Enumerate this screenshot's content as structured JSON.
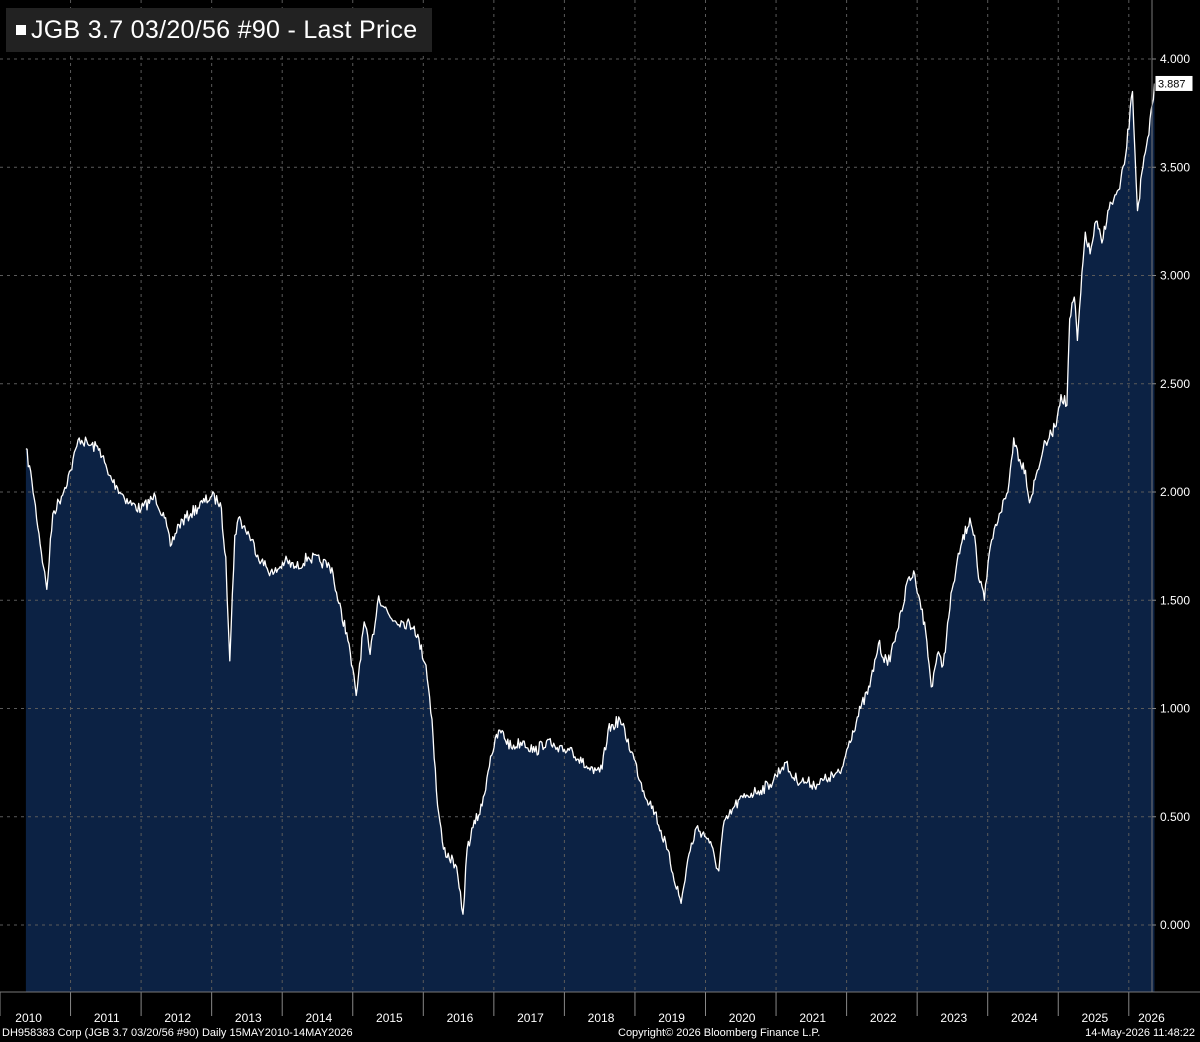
{
  "legend": {
    "label": "JGB 3.7 03/20/56 #90 - Last Price"
  },
  "footer": {
    "left": "DH958383 Corp (JGB 3.7 03/20/56 #90) Daily 15MAY2010-14MAY2026",
    "center": "Copyright© 2026 Bloomberg Finance L.P.",
    "right": "14-May-2026 11:48:22"
  },
  "chart_data": {
    "type": "area",
    "title": "JGB 3.7 03/20/56 #90 - Last Price",
    "xlabel": "",
    "ylabel": "",
    "x_range": [
      "2010-05-15",
      "2026-05-14"
    ],
    "ylim": [
      -0.3,
      4.1
    ],
    "y_ticks": [
      "0.000",
      "0.500",
      "1.000",
      "1.500",
      "2.000",
      "2.500",
      "3.000",
      "3.500",
      "4.000"
    ],
    "x_ticks": [
      "2010",
      "2011",
      "2012",
      "2013",
      "2014",
      "2015",
      "2016",
      "2017",
      "2018",
      "2019",
      "2020",
      "2021",
      "2022",
      "2023",
      "2024",
      "2025",
      "2026"
    ],
    "grid": true,
    "y_axis_side": "right",
    "last_value_label": "3.887",
    "colors": {
      "line": "#ffffff",
      "fill": "#0c2244",
      "background": "#000000",
      "grid": "#5a5a5a"
    },
    "series": [
      {
        "name": "JGB 3.7 03/20/56 #90 - Last Price",
        "points": [
          [
            "2010-05-15",
            2.2
          ],
          [
            "2010-06-15",
            2.05
          ],
          [
            "2010-08-15",
            1.65
          ],
          [
            "2010-08-31",
            1.55
          ],
          [
            "2010-10-01",
            1.9
          ],
          [
            "2010-11-15",
            1.98
          ],
          [
            "2011-01-01",
            2.1
          ],
          [
            "2011-02-15",
            2.25
          ],
          [
            "2011-04-01",
            2.22
          ],
          [
            "2011-06-01",
            2.2
          ],
          [
            "2011-07-15",
            2.08
          ],
          [
            "2011-09-01",
            2.02
          ],
          [
            "2011-11-01",
            1.95
          ],
          [
            "2012-01-01",
            1.92
          ],
          [
            "2012-03-15",
            1.98
          ],
          [
            "2012-05-01",
            1.88
          ],
          [
            "2012-06-01",
            1.75
          ],
          [
            "2012-07-15",
            1.85
          ],
          [
            "2012-09-15",
            1.9
          ],
          [
            "2012-11-15",
            1.95
          ],
          [
            "2013-01-01",
            1.98
          ],
          [
            "2013-02-15",
            1.95
          ],
          [
            "2013-03-15",
            1.7
          ],
          [
            "2013-04-05",
            1.22
          ],
          [
            "2013-05-01",
            1.8
          ],
          [
            "2013-05-20",
            1.88
          ],
          [
            "2013-07-15",
            1.8
          ],
          [
            "2013-09-15",
            1.68
          ],
          [
            "2013-11-15",
            1.62
          ],
          [
            "2014-01-15",
            1.68
          ],
          [
            "2014-03-15",
            1.65
          ],
          [
            "2014-05-15",
            1.7
          ],
          [
            "2014-07-15",
            1.68
          ],
          [
            "2014-09-15",
            1.65
          ],
          [
            "2014-10-15",
            1.5
          ],
          [
            "2014-12-01",
            1.35
          ],
          [
            "2015-01-19",
            1.06
          ],
          [
            "2015-03-01",
            1.4
          ],
          [
            "2015-04-01",
            1.25
          ],
          [
            "2015-05-15",
            1.52
          ],
          [
            "2015-07-15",
            1.42
          ],
          [
            "2015-09-15",
            1.4
          ],
          [
            "2015-11-15",
            1.38
          ],
          [
            "2016-01-15",
            1.2
          ],
          [
            "2016-02-15",
            0.95
          ],
          [
            "2016-03-15",
            0.55
          ],
          [
            "2016-04-15",
            0.35
          ],
          [
            "2016-06-15",
            0.28
          ],
          [
            "2016-07-25",
            0.05
          ],
          [
            "2016-08-15",
            0.35
          ],
          [
            "2016-09-15",
            0.45
          ],
          [
            "2016-11-01",
            0.55
          ],
          [
            "2016-12-15",
            0.78
          ],
          [
            "2017-02-01",
            0.9
          ],
          [
            "2017-04-01",
            0.82
          ],
          [
            "2017-06-01",
            0.85
          ],
          [
            "2017-08-01",
            0.8
          ],
          [
            "2017-10-01",
            0.85
          ],
          [
            "2017-12-01",
            0.8
          ],
          [
            "2018-02-01",
            0.82
          ],
          [
            "2018-04-01",
            0.75
          ],
          [
            "2018-06-01",
            0.7
          ],
          [
            "2018-07-15",
            0.72
          ],
          [
            "2018-08-15",
            0.9
          ],
          [
            "2018-10-15",
            0.95
          ],
          [
            "2018-12-15",
            0.8
          ],
          [
            "2019-02-15",
            0.62
          ],
          [
            "2019-04-15",
            0.52
          ],
          [
            "2019-06-15",
            0.35
          ],
          [
            "2019-08-28",
            0.1
          ],
          [
            "2019-10-01",
            0.3
          ],
          [
            "2019-11-15",
            0.45
          ],
          [
            "2020-01-15",
            0.4
          ],
          [
            "2020-03-10",
            0.25
          ],
          [
            "2020-04-01",
            0.45
          ],
          [
            "2020-06-01",
            0.55
          ],
          [
            "2020-08-01",
            0.6
          ],
          [
            "2020-10-01",
            0.62
          ],
          [
            "2020-12-01",
            0.65
          ],
          [
            "2021-02-15",
            0.75
          ],
          [
            "2021-04-01",
            0.68
          ],
          [
            "2021-06-01",
            0.66
          ],
          [
            "2021-08-01",
            0.65
          ],
          [
            "2021-10-01",
            0.68
          ],
          [
            "2021-12-01",
            0.7
          ],
          [
            "2022-01-15",
            0.85
          ],
          [
            "2022-03-15",
            1.0
          ],
          [
            "2022-05-01",
            1.1
          ],
          [
            "2022-06-15",
            1.3
          ],
          [
            "2022-08-01",
            1.2
          ],
          [
            "2022-09-15",
            1.35
          ],
          [
            "2022-10-15",
            1.45
          ],
          [
            "2022-11-15",
            1.6
          ],
          [
            "2022-12-20",
            1.62
          ],
          [
            "2023-01-15",
            1.5
          ],
          [
            "2023-02-15",
            1.35
          ],
          [
            "2023-03-15",
            1.1
          ],
          [
            "2023-04-15",
            1.25
          ],
          [
            "2023-05-15",
            1.2
          ],
          [
            "2023-07-01",
            1.55
          ],
          [
            "2023-08-15",
            1.75
          ],
          [
            "2023-10-01",
            1.88
          ],
          [
            "2023-10-25",
            1.8
          ],
          [
            "2023-11-15",
            1.6
          ],
          [
            "2023-12-15",
            1.5
          ],
          [
            "2024-01-15",
            1.75
          ],
          [
            "2024-03-01",
            1.9
          ],
          [
            "2024-04-15",
            2.0
          ],
          [
            "2024-05-15",
            2.25
          ],
          [
            "2024-06-15",
            2.15
          ],
          [
            "2024-07-15",
            2.1
          ],
          [
            "2024-08-05",
            1.95
          ],
          [
            "2024-09-15",
            2.1
          ],
          [
            "2024-10-15",
            2.2
          ],
          [
            "2024-11-15",
            2.25
          ],
          [
            "2024-12-15",
            2.3
          ],
          [
            "2025-01-15",
            2.45
          ],
          [
            "2025-02-15",
            2.4
          ],
          [
            "2025-03-01",
            2.8
          ],
          [
            "2025-03-25",
            2.9
          ],
          [
            "2025-04-10",
            2.7
          ],
          [
            "2025-05-21",
            3.2
          ],
          [
            "2025-06-15",
            3.1
          ],
          [
            "2025-07-15",
            3.25
          ],
          [
            "2025-08-15",
            3.15
          ],
          [
            "2025-09-15",
            3.3
          ],
          [
            "2025-10-15",
            3.35
          ],
          [
            "2025-11-15",
            3.4
          ],
          [
            "2025-12-15",
            3.55
          ],
          [
            "2026-01-20",
            3.85
          ],
          [
            "2026-02-15",
            3.3
          ],
          [
            "2026-03-15",
            3.5
          ],
          [
            "2026-04-15",
            3.65
          ],
          [
            "2026-05-14",
            3.887
          ]
        ]
      }
    ]
  }
}
